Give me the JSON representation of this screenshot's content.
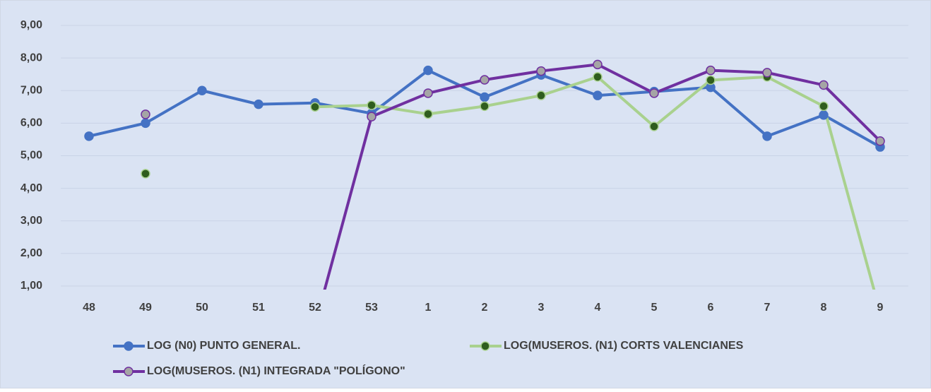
{
  "chart_data": {
    "type": "line",
    "categories": [
      "48",
      "49",
      "50",
      "51",
      "52",
      "53",
      "1",
      "2",
      "3",
      "4",
      "5",
      "6",
      "7",
      "8",
      "9"
    ],
    "series": [
      {
        "name": "LOG (N0) PUNTO GENERAL.",
        "color": "#4472c4",
        "marker_fill": "#4472c4",
        "values": [
          5.6,
          6.0,
          7.0,
          6.58,
          6.62,
          6.3,
          7.62,
          6.8,
          7.48,
          6.85,
          6.97,
          7.1,
          5.6,
          6.25,
          5.27
        ]
      },
      {
        "name": "LOG(MUSEROS. (N1) CORTS VALENCIANES",
        "color": "#a9d18e",
        "marker_fill": "#2f5d1e",
        "values": [
          null,
          4.45,
          null,
          null,
          6.5,
          6.55,
          6.28,
          6.52,
          6.85,
          7.42,
          5.9,
          7.32,
          7.42,
          6.52,
          0.2
        ]
      },
      {
        "name": "LOG(MUSEROS. (N1) INTEGRADA \"POLÍGONO\"",
        "color": "#7030a0",
        "marker_fill": "#a5a5a5",
        "values": [
          null,
          6.27,
          null,
          null,
          -0.2,
          6.2,
          6.92,
          7.33,
          7.6,
          7.8,
          6.92,
          7.62,
          7.55,
          7.17,
          5.45
        ]
      }
    ],
    "ylim": [
      1,
      9
    ],
    "yticks": [
      {
        "value": 1,
        "label": "1,00"
      },
      {
        "value": 2,
        "label": "2,00"
      },
      {
        "value": 3,
        "label": "3,00"
      },
      {
        "value": 4,
        "label": "4,00"
      },
      {
        "value": 5,
        "label": "5,00"
      },
      {
        "value": 6,
        "label": "6,00"
      },
      {
        "value": 7,
        "label": "7,00"
      },
      {
        "value": 8,
        "label": "8,00"
      },
      {
        "value": 9,
        "label": "9,00"
      }
    ],
    "grid": true,
    "legend": "bottom",
    "background": "#dae3f3"
  }
}
